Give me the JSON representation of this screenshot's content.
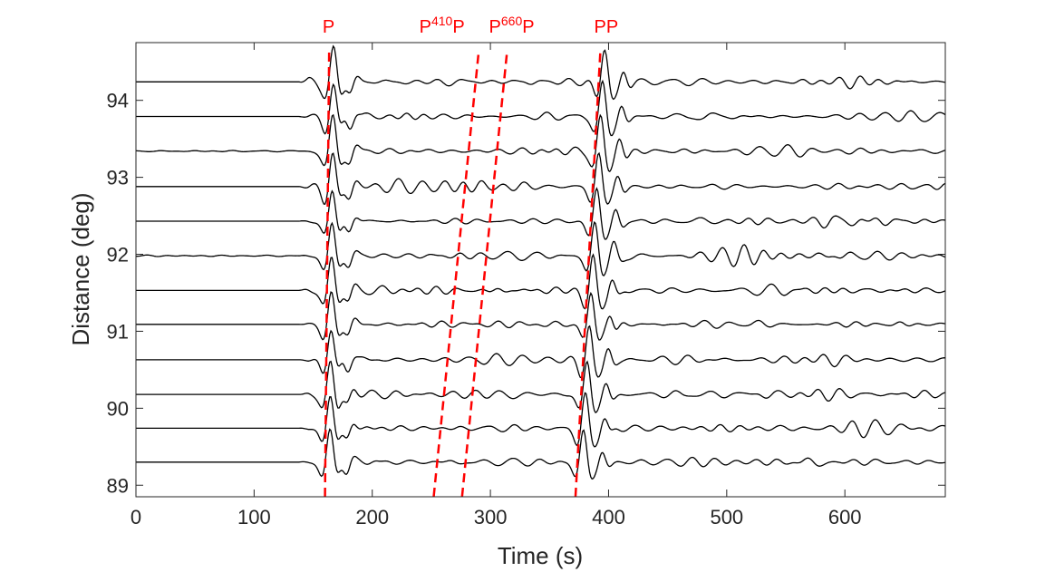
{
  "colors": {
    "trace": "#000000",
    "phase_curve": "#ff0000",
    "axis": "#262626",
    "background": "#ffffff"
  },
  "chart_data": {
    "type": "line",
    "title": "",
    "xlabel": "Time (s)",
    "ylabel": "Distance (deg)",
    "xlim": [
      0,
      685
    ],
    "ylim": [
      88.85,
      94.75
    ],
    "x_ticks": [
      "0",
      "100",
      "200",
      "300",
      "400",
      "500",
      "600"
    ],
    "y_ticks": [
      "89",
      "90",
      "91",
      "92",
      "93",
      "94"
    ],
    "grid": false,
    "trace_distances": [
      89.3,
      89.74,
      90.18,
      90.63,
      91.09,
      91.53,
      91.98,
      92.43,
      92.88,
      93.34,
      93.79,
      94.24
    ],
    "trace_onset_s": 138,
    "phase_labels": [
      {
        "parts": [
          {
            "text": "P",
            "sup": false
          }
        ]
      },
      {
        "parts": [
          {
            "text": "P",
            "sup": false
          },
          {
            "text": "410",
            "sup": true
          },
          {
            "text": "P",
            "sup": false
          }
        ]
      },
      {
        "parts": [
          {
            "text": "P",
            "sup": false
          },
          {
            "text": "660",
            "sup": true
          },
          {
            "text": "P",
            "sup": false
          }
        ]
      },
      {
        "parts": [
          {
            "text": "PP",
            "sup": false
          }
        ]
      }
    ],
    "phase_curves": [
      {
        "style": "dashed",
        "x": [
          160,
          163.5
        ],
        "y": [
          88.85,
          94.62
        ]
      },
      {
        "style": "dashed",
        "x": [
          252,
          290
        ],
        "y": [
          88.85,
          94.62
        ]
      },
      {
        "style": "dashed",
        "x": [
          276,
          314
        ],
        "y": [
          88.85,
          94.62
        ]
      },
      {
        "style": "dashed",
        "x": [
          372,
          393
        ],
        "y": [
          88.85,
          94.62
        ]
      }
    ]
  }
}
